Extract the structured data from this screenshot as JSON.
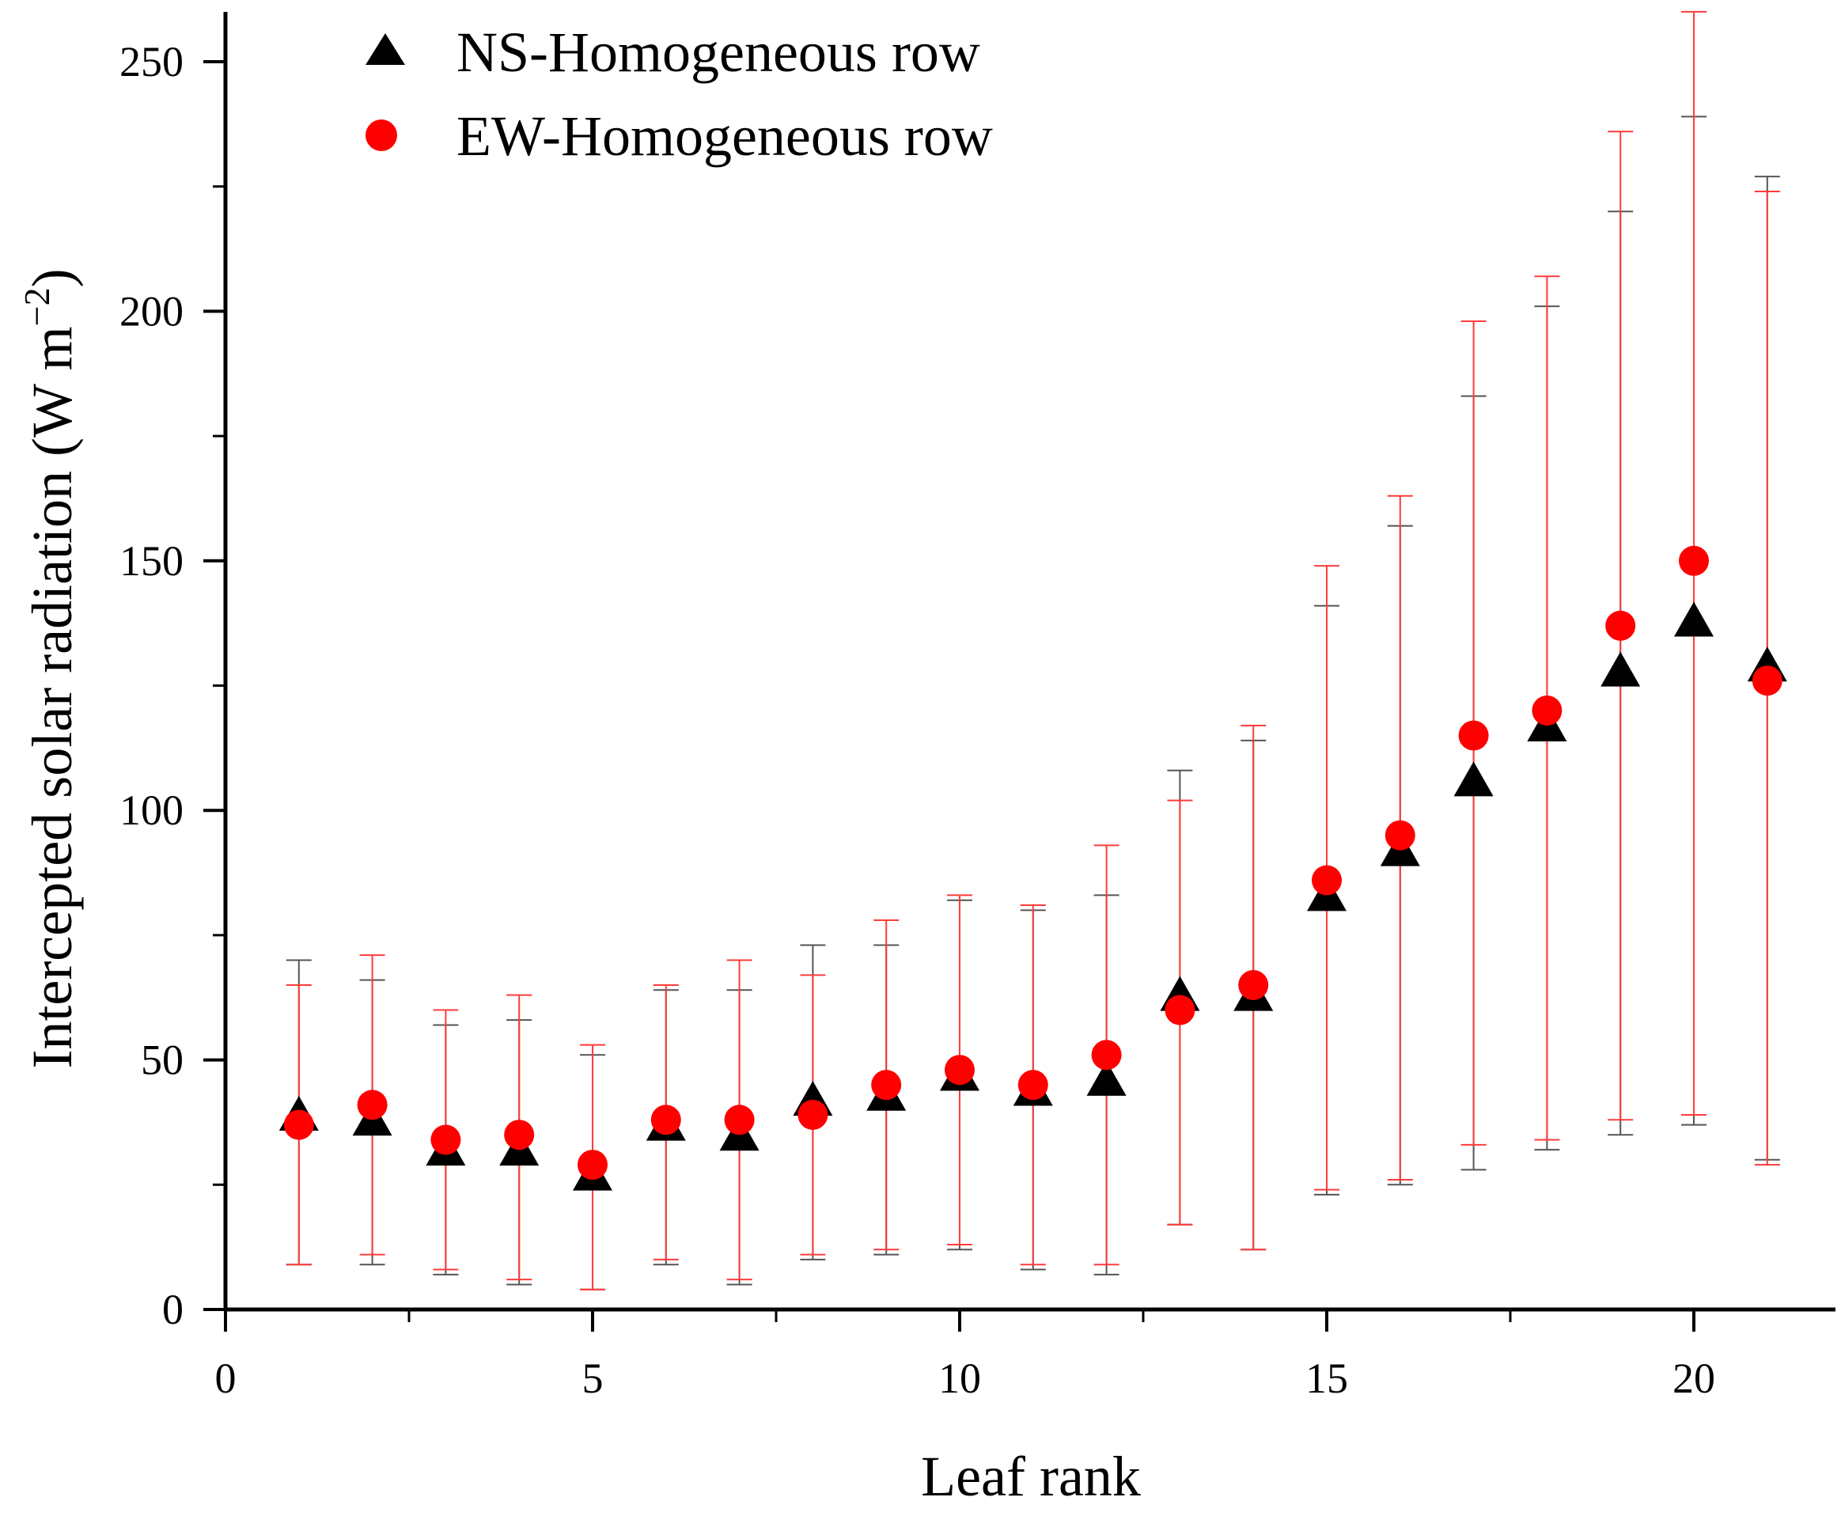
{
  "chart_data": {
    "type": "scatter",
    "title": "",
    "xlabel": "Leaf rank",
    "ylabel": "Intercepted solar radiation (W m",
    "ylabel_superscript": "−2",
    "ylabel_close": ")",
    "xlim": [
      0,
      22
    ],
    "ylim": [
      0,
      260
    ],
    "xticks": [
      0,
      5,
      10,
      15,
      20
    ],
    "yticks": [
      0,
      50,
      100,
      150,
      200,
      250
    ],
    "legend_position": "top-left",
    "series": [
      {
        "name": "NS-Homogeneous row",
        "marker": "triangle",
        "color": "#000000",
        "errorbar_color": "#555555",
        "x": [
          1,
          2,
          3,
          4,
          5,
          6,
          7,
          8,
          9,
          10,
          11,
          12,
          13,
          14,
          15,
          16,
          17,
          18,
          19,
          20,
          21
        ],
        "values": [
          39,
          38,
          32,
          32,
          27,
          37,
          35,
          42,
          43,
          47,
          44,
          46,
          63,
          63,
          83,
          92,
          106,
          117,
          128,
          138,
          129
        ],
        "upper": [
          70,
          66,
          57,
          58,
          51,
          64,
          64,
          73,
          73,
          82,
          80,
          83,
          108,
          114,
          141,
          157,
          183,
          201,
          220,
          239,
          227
        ],
        "lower": [
          9,
          9,
          7,
          5,
          4,
          9,
          5,
          10,
          11,
          12,
          8,
          7,
          17,
          12,
          23,
          25,
          28,
          32,
          35,
          37,
          30
        ]
      },
      {
        "name": "EW-Homogeneous row",
        "marker": "circle",
        "color": "#ff0000",
        "errorbar_color": "#ff3b3b",
        "x": [
          1,
          2,
          3,
          4,
          5,
          6,
          7,
          8,
          9,
          10,
          11,
          12,
          13,
          14,
          15,
          16,
          17,
          18,
          19,
          20,
          21
        ],
        "values": [
          37,
          41,
          34,
          35,
          29,
          38,
          38,
          39,
          45,
          48,
          45,
          51,
          60,
          65,
          86,
          95,
          115,
          120,
          137,
          150,
          126
        ],
        "upper": [
          65,
          71,
          60,
          63,
          53,
          65,
          70,
          67,
          78,
          83,
          81,
          93,
          102,
          117,
          149,
          163,
          198,
          207,
          236,
          260,
          224
        ],
        "lower": [
          9,
          11,
          8,
          6,
          4,
          10,
          6,
          11,
          12,
          13,
          9,
          9,
          17,
          12,
          24,
          26,
          33,
          34,
          38,
          39,
          29
        ]
      }
    ]
  }
}
